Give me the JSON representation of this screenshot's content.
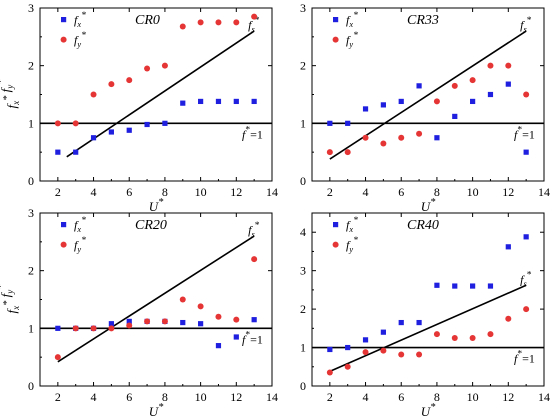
{
  "chart_data": [
    {
      "type": "scatter",
      "title": "CR0",
      "xlabel": "U*",
      "ylabel": "fx* fy*",
      "xlim": [
        1,
        14
      ],
      "ylim": [
        0,
        3
      ],
      "xticks": [
        2,
        4,
        6,
        8,
        10,
        12,
        14
      ],
      "yticks": [
        0,
        1,
        2,
        3
      ],
      "legend_position": "top-left",
      "series": [
        {
          "name": "fx*",
          "marker": "square",
          "color": "#1f1fe0",
          "x": [
            2,
            3,
            4,
            5,
            6,
            7,
            8,
            9,
            10,
            11,
            12,
            13
          ],
          "y": [
            0.5,
            0.5,
            0.75,
            0.85,
            0.88,
            0.98,
            1.0,
            1.35,
            1.38,
            1.38,
            1.38,
            1.38
          ]
        },
        {
          "name": "fy*",
          "marker": "circle",
          "color": "#e53535",
          "x": [
            2,
            3,
            4,
            5,
            6,
            7,
            8,
            9,
            10,
            11,
            12,
            13
          ],
          "y": [
            1.0,
            1.0,
            1.5,
            1.68,
            1.75,
            1.95,
            2.0,
            2.68,
            2.75,
            2.75,
            2.75,
            2.85
          ]
        }
      ],
      "fit_line": {
        "label": "fs*",
        "x": [
          2.5,
          13
        ],
        "y": [
          0.42,
          2.6
        ]
      },
      "reference_line": {
        "label": "f*=1",
        "y": 1
      }
    },
    {
      "type": "scatter",
      "title": "CR33",
      "xlabel": "U*",
      "ylabel": "",
      "xlim": [
        1,
        14
      ],
      "ylim": [
        0,
        3
      ],
      "xticks": [
        2,
        4,
        6,
        8,
        10,
        12,
        14
      ],
      "yticks": [
        0,
        1,
        2,
        3
      ],
      "legend_position": "top-left",
      "series": [
        {
          "name": "fx*",
          "marker": "square",
          "color": "#1f1fe0",
          "x": [
            2,
            3,
            4,
            5,
            6,
            7,
            8,
            9,
            10,
            11,
            12,
            13
          ],
          "y": [
            1.0,
            1.0,
            1.25,
            1.32,
            1.38,
            1.65,
            0.75,
            1.12,
            1.38,
            1.5,
            1.68,
            0.5
          ]
        },
        {
          "name": "fy*",
          "marker": "circle",
          "color": "#e53535",
          "x": [
            2,
            3,
            4,
            5,
            6,
            7,
            8,
            9,
            10,
            11,
            12,
            13
          ],
          "y": [
            0.5,
            0.5,
            0.75,
            0.65,
            0.75,
            0.82,
            1.38,
            1.65,
            1.75,
            2.0,
            2.0,
            1.5
          ]
        }
      ],
      "fit_line": {
        "label": "fs*",
        "x": [
          2,
          13
        ],
        "y": [
          0.38,
          2.6
        ]
      },
      "reference_line": {
        "label": "f*=1",
        "y": 1
      }
    },
    {
      "type": "scatter",
      "title": "CR20",
      "xlabel": "U*",
      "ylabel": "fx* fy*",
      "xlim": [
        1,
        14
      ],
      "ylim": [
        0,
        3
      ],
      "xticks": [
        2,
        4,
        6,
        8,
        10,
        12,
        14
      ],
      "yticks": [
        0,
        1,
        2,
        3
      ],
      "legend_position": "top-left",
      "series": [
        {
          "name": "fx*",
          "marker": "square",
          "color": "#1f1fe0",
          "x": [
            2,
            3,
            4,
            5,
            6,
            7,
            8,
            9,
            10,
            11,
            12,
            13
          ],
          "y": [
            1.0,
            1.0,
            1.0,
            1.08,
            1.12,
            1.12,
            1.12,
            1.1,
            1.08,
            0.7,
            0.85,
            1.15
          ]
        },
        {
          "name": "fy*",
          "marker": "circle",
          "color": "#e53535",
          "x": [
            2,
            3,
            4,
            5,
            6,
            7,
            8,
            9,
            10,
            11,
            12,
            13
          ],
          "y": [
            0.5,
            1.0,
            1.0,
            1.0,
            1.05,
            1.12,
            1.12,
            1.5,
            1.38,
            1.2,
            1.15,
            2.2
          ]
        }
      ],
      "fit_line": {
        "label": "fs*",
        "x": [
          2,
          13
        ],
        "y": [
          0.42,
          2.6
        ]
      },
      "reference_line": {
        "label": "f*=1",
        "y": 1
      }
    },
    {
      "type": "scatter",
      "title": "CR40",
      "xlabel": "U*",
      "ylabel": "",
      "xlim": [
        1,
        14
      ],
      "ylim": [
        0,
        4.5
      ],
      "xticks": [
        2,
        4,
        6,
        8,
        10,
        12,
        14
      ],
      "yticks": [
        0,
        1,
        2,
        3,
        4
      ],
      "legend_position": "top-left",
      "series": [
        {
          "name": "fx*",
          "marker": "square",
          "color": "#1f1fe0",
          "x": [
            2,
            3,
            4,
            5,
            6,
            7,
            8,
            9,
            10,
            11,
            12,
            13
          ],
          "y": [
            0.95,
            1.0,
            1.2,
            1.4,
            1.65,
            1.65,
            2.62,
            2.6,
            2.6,
            2.6,
            3.62,
            3.88
          ]
        },
        {
          "name": "fy*",
          "marker": "circle",
          "color": "#e53535",
          "x": [
            2,
            3,
            4,
            5,
            6,
            7,
            8,
            9,
            10,
            11,
            12,
            13
          ],
          "y": [
            0.35,
            0.5,
            0.88,
            0.92,
            0.82,
            0.82,
            1.35,
            1.25,
            1.25,
            1.35,
            1.75,
            2.0
          ]
        }
      ],
      "fit_line": {
        "label": "fs*",
        "x": [
          2,
          13
        ],
        "y": [
          0.38,
          2.62
        ]
      },
      "reference_line": {
        "label": "f*=1",
        "y": 1
      }
    }
  ]
}
